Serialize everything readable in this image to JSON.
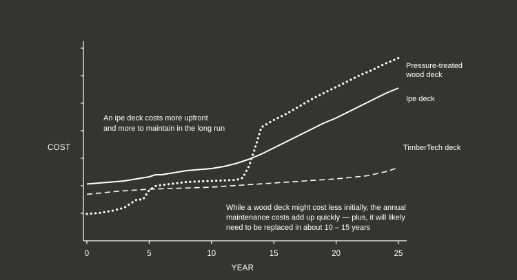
{
  "chart_data": {
    "type": "line",
    "title": "",
    "xlabel": "YEAR",
    "ylabel": "COST",
    "xlim": [
      0,
      25
    ],
    "x_ticks": [
      0,
      5,
      10,
      15,
      20,
      25
    ],
    "y_tick_count": 7,
    "grid": false,
    "background": "#343431",
    "line_color": "#ffffff",
    "series": [
      {
        "name": "Pressure-treated wood deck",
        "label_lines": [
          "Pressure-treated",
          "wood deck"
        ],
        "style": "dotted",
        "x": [
          0,
          1,
          2,
          3,
          3.5,
          4,
          4.5,
          5,
          5.5,
          6,
          8,
          10,
          12,
          12.5,
          13,
          13.5,
          14,
          15,
          16,
          17,
          18,
          19,
          20,
          21,
          22,
          23,
          24,
          25
        ],
        "y": [
          1.3,
          1.35,
          1.45,
          1.6,
          1.8,
          2.0,
          2.0,
          2.45,
          2.65,
          2.7,
          2.85,
          2.9,
          2.95,
          3.05,
          3.6,
          4.5,
          5.5,
          5.85,
          6.15,
          6.5,
          6.85,
          7.15,
          7.45,
          7.75,
          8.05,
          8.3,
          8.6,
          8.85
        ]
      },
      {
        "name": "Ipe deck",
        "label_lines": [
          "Ipe deck"
        ],
        "style": "solid",
        "x": [
          0,
          1,
          2,
          3,
          4,
          5,
          5.5,
          6,
          7,
          8,
          9,
          10,
          11,
          12,
          13,
          14,
          15,
          16,
          17,
          18,
          19,
          20,
          21,
          22,
          23,
          24,
          25
        ],
        "y": [
          2.75,
          2.8,
          2.85,
          2.9,
          3.0,
          3.1,
          3.2,
          3.2,
          3.3,
          3.4,
          3.45,
          3.5,
          3.6,
          3.75,
          3.95,
          4.2,
          4.5,
          4.8,
          5.1,
          5.4,
          5.7,
          5.95,
          6.25,
          6.55,
          6.85,
          7.15,
          7.4
        ]
      },
      {
        "name": "TimberTech deck",
        "label_lines": [
          "TimberTech deck"
        ],
        "style": "dashed",
        "x": [
          0,
          2.5,
          5,
          7.5,
          10,
          12.5,
          15,
          17.5,
          20,
          22.5,
          24,
          25
        ],
        "y": [
          2.25,
          2.4,
          2.5,
          2.55,
          2.6,
          2.7,
          2.8,
          2.9,
          3.0,
          3.15,
          3.35,
          3.55
        ]
      }
    ],
    "annotations": [
      {
        "lines": [
          "An ipe deck costs more upfront",
          "and more to maintain in the long run"
        ]
      },
      {
        "lines": [
          "While a wood deck might cost less initially, the annual",
          "maintenance costs add up quickly — plus, it will likely",
          "need to be replaced in about 10 – 15 years"
        ]
      }
    ]
  }
}
